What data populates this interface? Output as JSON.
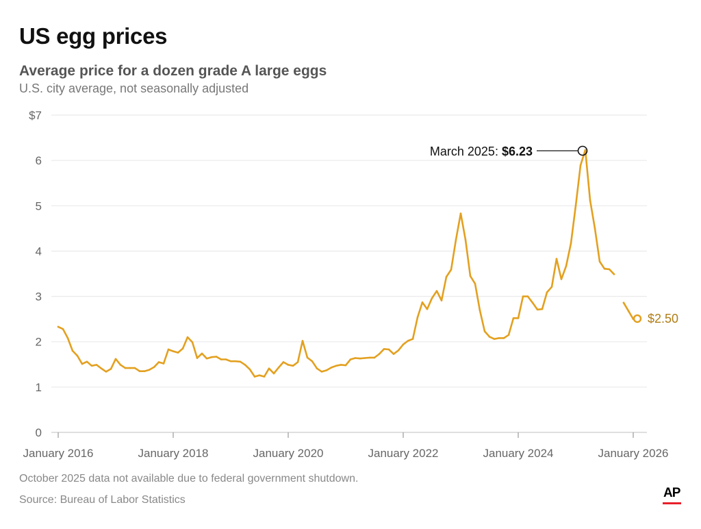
{
  "header": {
    "title": "US egg prices",
    "subtitle": "Average price for a dozen grade A large eggs",
    "description": "U.S. city average, not seasonally adjusted"
  },
  "footer": {
    "note": "October 2025 data not available due to federal government shutdown.",
    "source": "Source: Bureau of Labor Statistics",
    "logo": "AP"
  },
  "chart_data": {
    "type": "line",
    "title": "US egg prices",
    "ylabel": "",
    "xlabel": "",
    "ylim": [
      0,
      7
    ],
    "yticks": [
      "0",
      "1",
      "2",
      "3",
      "4",
      "5",
      "6",
      "$7"
    ],
    "xticks": [
      "January 2016",
      "January 2018",
      "January 2020",
      "January 2022",
      "January 2024",
      "January 2026"
    ],
    "grid": true,
    "color": "#e3a01f",
    "start": "2016-01",
    "frequency": "monthly",
    "values": [
      2.33,
      2.28,
      2.08,
      1.8,
      1.69,
      1.51,
      1.56,
      1.47,
      1.49,
      1.41,
      1.34,
      1.4,
      1.62,
      1.49,
      1.42,
      1.42,
      1.42,
      1.35,
      1.35,
      1.38,
      1.44,
      1.55,
      1.52,
      1.83,
      1.79,
      1.76,
      1.85,
      2.1,
      1.99,
      1.64,
      1.74,
      1.63,
      1.66,
      1.67,
      1.61,
      1.61,
      1.57,
      1.57,
      1.56,
      1.49,
      1.39,
      1.23,
      1.26,
      1.23,
      1.41,
      1.3,
      1.43,
      1.55,
      1.49,
      1.47,
      1.55,
      2.02,
      1.65,
      1.57,
      1.41,
      1.34,
      1.37,
      1.43,
      1.47,
      1.49,
      1.48,
      1.61,
      1.64,
      1.63,
      1.64,
      1.65,
      1.65,
      1.73,
      1.84,
      1.83,
      1.73,
      1.81,
      1.94,
      2.02,
      2.06,
      2.54,
      2.87,
      2.72,
      2.96,
      3.12,
      2.91,
      3.43,
      3.59,
      4.25,
      4.83,
      4.25,
      3.45,
      3.28,
      2.69,
      2.23,
      2.11,
      2.06,
      2.08,
      2.08,
      2.15,
      2.52,
      2.52,
      3.0,
      3.0,
      2.86,
      2.71,
      2.72,
      3.09,
      3.21,
      3.83,
      3.38,
      3.67,
      4.17,
      5.0,
      5.89,
      6.23,
      5.12,
      4.5,
      3.77,
      3.61,
      3.6,
      3.49,
      null,
      2.86,
      2.68,
      2.5
    ],
    "annotations": {
      "peak_label": "March 2025: ",
      "peak_value": "$6.23",
      "last_value": "$2.50"
    }
  }
}
